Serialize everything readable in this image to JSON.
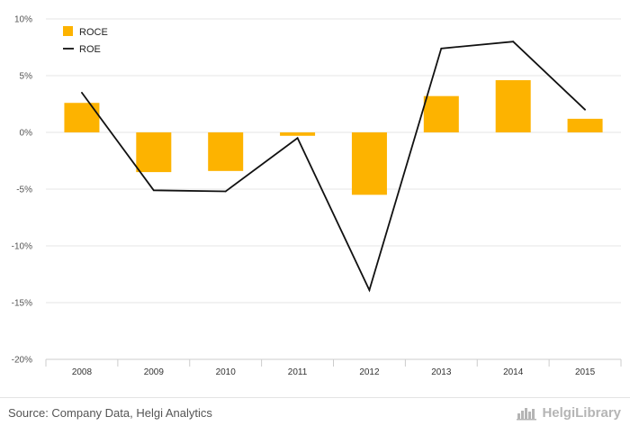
{
  "colors": {
    "bar": "#FDB300",
    "line": "#111111",
    "grid": "#e6e6e6",
    "axis": "#cccccc"
  },
  "chart_data": {
    "type": "bar",
    "title": "",
    "xlabel": "",
    "ylabel": "",
    "categories": [
      "2008",
      "2009",
      "2010",
      "2011",
      "2012",
      "2013",
      "2014",
      "2015"
    ],
    "ylim": [
      -20,
      10
    ],
    "yticks": [
      10,
      5,
      0,
      -5,
      -10,
      -15,
      -20
    ],
    "ytick_labels": [
      "10%",
      "5%",
      "0%",
      "-5%",
      "-10%",
      "-15%",
      "-20%"
    ],
    "grid": true,
    "legend_position": "top-left",
    "series": [
      {
        "name": "ROCE",
        "type": "bar",
        "values": [
          2.6,
          -3.5,
          -3.4,
          -0.3,
          -5.5,
          3.2,
          4.6,
          1.2
        ]
      },
      {
        "name": "ROE",
        "type": "line",
        "values": [
          3.5,
          -5.1,
          -5.2,
          -0.5,
          -13.9,
          7.4,
          8.0,
          2.0
        ]
      }
    ]
  },
  "footer": {
    "source": "Source: Company Data, Helgi Analytics",
    "logo_text": "HelgiLibrary",
    "logo_icon": "helgi-library-logo-icon"
  }
}
